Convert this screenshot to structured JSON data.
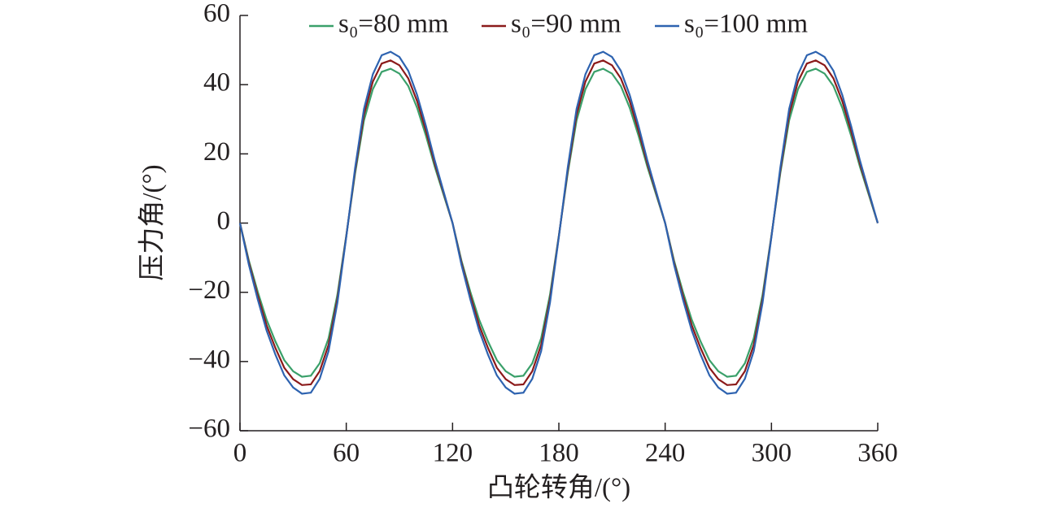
{
  "chart_data": {
    "type": "line",
    "xlabel": "凸轮转角/(°)",
    "ylabel": "压力角/(°)",
    "xlim": [
      0,
      360
    ],
    "ylim": [
      -60,
      60
    ],
    "xticks": [
      0,
      60,
      120,
      180,
      240,
      300,
      360
    ],
    "yticks": [
      {
        "value": -60,
        "label": "−60"
      },
      {
        "value": -40,
        "label": "−40"
      },
      {
        "value": -20,
        "label": "−20"
      },
      0,
      20,
      40,
      60
    ],
    "legend": "top",
    "x": [
      0,
      5,
      10,
      15,
      20,
      25,
      30,
      35,
      40,
      45,
      50,
      55,
      60,
      65,
      70,
      75,
      80,
      85,
      90,
      95,
      100,
      105,
      110,
      115,
      120,
      125,
      130,
      135,
      140,
      145,
      150,
      155,
      160,
      165,
      170,
      175,
      180,
      185,
      190,
      195,
      200,
      205,
      210,
      215,
      220,
      225,
      230,
      235,
      240,
      245,
      250,
      255,
      260,
      265,
      270,
      275,
      280,
      285,
      290,
      295,
      300,
      305,
      310,
      315,
      320,
      325,
      330,
      335,
      340,
      345,
      350,
      355,
      360
    ],
    "series": [
      {
        "name": "s₀=80 mm",
        "color": "#3aa06a",
        "values": [
          0,
          -10.8,
          -19.8,
          -27.9,
          -34.2,
          -39.6,
          -42.8,
          -44.4,
          -44.1,
          -40.5,
          -33.3,
          -20.7,
          -3.6,
          14.4,
          29.7,
          38.7,
          43.7,
          44.6,
          43.2,
          39.6,
          33.3,
          25.2,
          16.2,
          8.1,
          0,
          -10.8,
          -19.8,
          -27.9,
          -34.2,
          -39.6,
          -42.8,
          -44.4,
          -44.1,
          -40.5,
          -33.3,
          -20.7,
          -3.6,
          14.4,
          29.7,
          38.7,
          43.7,
          44.6,
          43.2,
          39.6,
          33.3,
          25.2,
          16.2,
          8.1,
          0,
          -10.8,
          -19.8,
          -27.9,
          -34.2,
          -39.6,
          -42.8,
          -44.4,
          -44.1,
          -40.5,
          -33.3,
          -20.7,
          -3.6,
          14.4,
          29.7,
          38.7,
          43.7,
          44.6,
          43.2,
          39.6,
          33.3,
          25.2,
          16.2,
          8.1,
          0
        ]
      },
      {
        "name": "s₀=90 mm",
        "color": "#8b1a1a",
        "values": [
          0,
          -11.4,
          -20.9,
          -29.5,
          -36.1,
          -41.8,
          -45.1,
          -46.8,
          -46.6,
          -42.8,
          -35.2,
          -21.9,
          -3.8,
          15.2,
          31.4,
          40.9,
          46.1,
          47,
          45.6,
          41.8,
          35.2,
          26.6,
          17.1,
          8.6,
          0,
          -11.4,
          -20.9,
          -29.5,
          -36.1,
          -41.8,
          -45.1,
          -46.8,
          -46.6,
          -42.8,
          -35.2,
          -21.9,
          -3.8,
          15.2,
          31.4,
          40.9,
          46.1,
          47,
          45.6,
          41.8,
          35.2,
          26.6,
          17.1,
          8.6,
          0,
          -11.4,
          -20.9,
          -29.5,
          -36.1,
          -41.8,
          -45.1,
          -46.8,
          -46.6,
          -42.8,
          -35.2,
          -21.9,
          -3.8,
          15.2,
          31.4,
          40.9,
          46.1,
          47,
          45.6,
          41.8,
          35.2,
          26.6,
          17.1,
          8.6,
          0
        ]
      },
      {
        "name": "s₀=100 mm",
        "color": "#2e63b0",
        "values": [
          0,
          -12,
          -22,
          -31,
          -38,
          -44,
          -47.5,
          -49.3,
          -49,
          -45,
          -37,
          -23,
          -4,
          16,
          33,
          43,
          48.5,
          49.5,
          48,
          44,
          37,
          28,
          18,
          9,
          0,
          -12,
          -22,
          -31,
          -38,
          -44,
          -47.5,
          -49.3,
          -49,
          -45,
          -37,
          -23,
          -4,
          16,
          33,
          43,
          48.5,
          49.5,
          48,
          44,
          37,
          28,
          18,
          9,
          0,
          -12,
          -22,
          -31,
          -38,
          -44,
          -47.5,
          -49.3,
          -49,
          -45,
          -37,
          -23,
          -4,
          16,
          33,
          43,
          48.5,
          49.5,
          48,
          44,
          37,
          28,
          18,
          9,
          0
        ]
      }
    ]
  }
}
